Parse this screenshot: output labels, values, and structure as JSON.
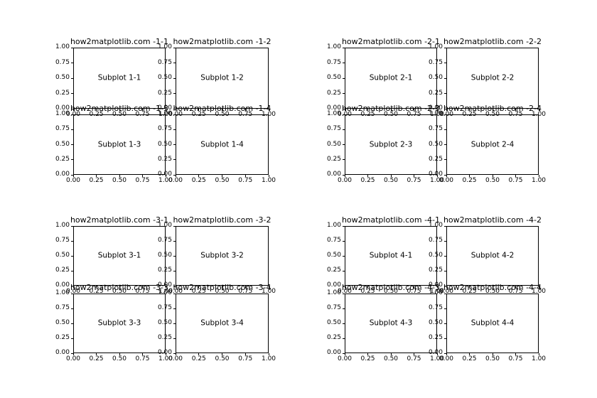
{
  "colors": {
    "background": "#ffffff",
    "spine": "#000000",
    "text": "#000000"
  },
  "axis": {
    "ytick_labels": [
      "1.00",
      "0.75",
      "0.50",
      "0.25",
      "0.00"
    ],
    "xtick_labels": [
      "0.00",
      "0.25",
      "0.50",
      "0.75",
      "1.00"
    ]
  },
  "chart_data": {
    "type": "grid-of-empty-axes",
    "layout": "2x2 groups, each group a 2x2 grid of empty subplots",
    "xlim": [
      0,
      1
    ],
    "ylim": [
      0,
      1
    ],
    "xticks": [
      0.0,
      0.25,
      0.5,
      0.75,
      1.0
    ],
    "yticks": [
      0.0,
      0.25,
      0.5,
      0.75,
      1.0
    ],
    "grid": "off",
    "series": [],
    "plots": [
      {
        "group": 1,
        "position": "1-1",
        "title": "how2matplotlib.com -1-1",
        "annotation": "Subplot 1-1"
      },
      {
        "group": 1,
        "position": "1-2",
        "title": "how2matplotlib.com -1-2",
        "annotation": "Subplot 1-2"
      },
      {
        "group": 1,
        "position": "1-3",
        "title": "how2matplotlib.com -1-3",
        "annotation": "Subplot 1-3"
      },
      {
        "group": 1,
        "position": "1-4",
        "title": "how2matplotlib.com -1-4",
        "annotation": "Subplot 1-4"
      },
      {
        "group": 2,
        "position": "2-1",
        "title": "how2matplotlib.com -2-1",
        "annotation": "Subplot 2-1"
      },
      {
        "group": 2,
        "position": "2-2",
        "title": "how2matplotlib.com -2-2",
        "annotation": "Subplot 2-2"
      },
      {
        "group": 2,
        "position": "2-3",
        "title": "how2matplotlib.com -2-3",
        "annotation": "Subplot 2-3"
      },
      {
        "group": 2,
        "position": "2-4",
        "title": "how2matplotlib.com -2-4",
        "annotation": "Subplot 2-4"
      },
      {
        "group": 3,
        "position": "3-1",
        "title": "how2matplotlib.com -3-1",
        "annotation": "Subplot 3-1"
      },
      {
        "group": 3,
        "position": "3-2",
        "title": "how2matplotlib.com -3-2",
        "annotation": "Subplot 3-2"
      },
      {
        "group": 3,
        "position": "3-3",
        "title": "how2matplotlib.com -3-3",
        "annotation": "Subplot 3-3"
      },
      {
        "group": 3,
        "position": "3-4",
        "title": "how2matplotlib.com -3-4",
        "annotation": "Subplot 3-4"
      },
      {
        "group": 4,
        "position": "4-1",
        "title": "how2matplotlib.com -4-1",
        "annotation": "Subplot 4-1"
      },
      {
        "group": 4,
        "position": "4-2",
        "title": "how2matplotlib.com -4-2",
        "annotation": "Subplot 4-2"
      },
      {
        "group": 4,
        "position": "4-3",
        "title": "how2matplotlib.com -4-3",
        "annotation": "Subplot 4-3"
      },
      {
        "group": 4,
        "position": "4-4",
        "title": "how2matplotlib.com -4-4",
        "annotation": "Subplot 4-4"
      }
    ]
  }
}
